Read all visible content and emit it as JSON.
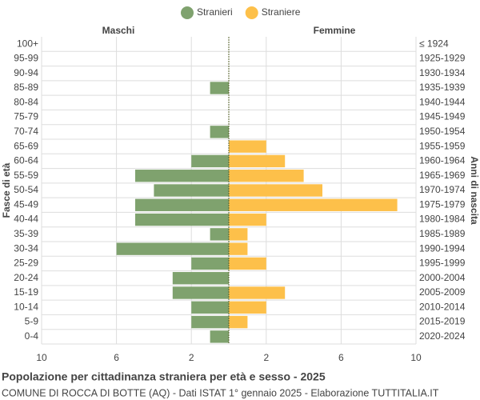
{
  "chart_data": {
    "type": "pyramid",
    "title": "Popolazione per cittadinanza straniera per età e sesso - 2025",
    "subtitle": "COMUNE DI ROCCA DI BOTTE (AQ) - Dati ISTAT 1° gennaio 2025 - Elaborazione TUTTITALIA.IT",
    "left_label": "Maschi",
    "right_label": "Femmine",
    "y_label": "Fasce di età",
    "y2_label": "Anni di nascita",
    "categories": [
      "100+",
      "95-99",
      "90-94",
      "85-89",
      "80-84",
      "75-79",
      "70-74",
      "65-69",
      "60-64",
      "55-59",
      "50-54",
      "45-49",
      "40-44",
      "35-39",
      "30-34",
      "25-29",
      "20-24",
      "15-19",
      "10-14",
      "5-9",
      "0-4"
    ],
    "birth_years": [
      "≤ 1924",
      "1925-1929",
      "1930-1934",
      "1935-1939",
      "1940-1944",
      "1945-1949",
      "1950-1954",
      "1955-1959",
      "1960-1964",
      "1965-1969",
      "1970-1974",
      "1975-1979",
      "1980-1984",
      "1985-1989",
      "1990-1994",
      "1995-1999",
      "2000-2004",
      "2005-2009",
      "2010-2014",
      "2015-2019",
      "2020-2024"
    ],
    "series": [
      {
        "name": "Stranieri",
        "color": "#7fa26e",
        "side": "left",
        "values": [
          0,
          0,
          0,
          1,
          0,
          0,
          1,
          0,
          2,
          5,
          4,
          5,
          5,
          1,
          6,
          2,
          3,
          3,
          2,
          2,
          1
        ]
      },
      {
        "name": "Straniere",
        "color": "#fdc04a",
        "side": "right",
        "values": [
          0,
          0,
          0,
          0,
          0,
          0,
          0,
          2,
          3,
          4,
          5,
          9,
          2,
          1,
          1,
          2,
          0,
          3,
          2,
          1,
          0
        ]
      }
    ],
    "xlim": [
      -10,
      10
    ],
    "xticks": [
      {
        "value": -10,
        "label": "10"
      },
      {
        "value": -6,
        "label": "6"
      },
      {
        "value": -2,
        "label": "2"
      },
      2,
      6,
      10
    ],
    "grid": true
  }
}
